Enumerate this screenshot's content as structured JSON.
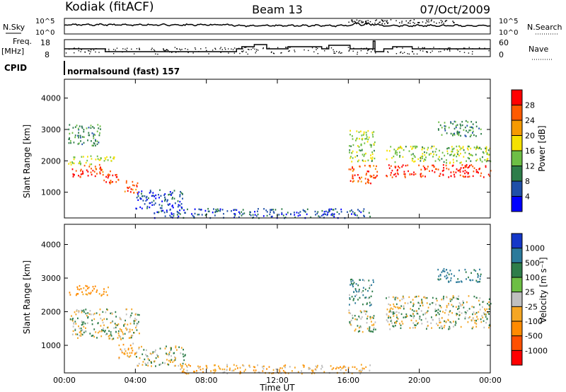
{
  "header": {
    "station": "Kodiak (fitACF)",
    "beam": "Beam 13",
    "date": "07/Oct/2009"
  },
  "noise_panel": {
    "left_label": "N.Sky",
    "right_label": "N.Search",
    "right_ticks": [
      "10^5",
      "10^0"
    ],
    "left_ticks": [
      "10^5",
      "10^0"
    ]
  },
  "freq_panel": {
    "left_label_line1": "Freq.",
    "left_label_line2": "[MHz]",
    "left_ticks": [
      "18",
      "8"
    ],
    "right_label": "Nave",
    "right_ticks": [
      "60",
      "0"
    ]
  },
  "cpid_panel": {
    "label": "CPID",
    "mode_text": "normalsound (fast) 157"
  },
  "power_panel": {
    "ylabel": "Slant Range [km]",
    "yticks": [
      "4000",
      "3000",
      "2000",
      "1000"
    ],
    "colorbar_label": "Power [dB]",
    "colorbar_ticks": [
      "28",
      "24",
      "20",
      "16",
      "12",
      "8",
      "4"
    ],
    "colors": [
      "#0000ff",
      "#1f4fa8",
      "#2e7d4a",
      "#6dbe45",
      "#f5e100",
      "#f59a00",
      "#ff5a00",
      "#ff0000"
    ]
  },
  "velocity_panel": {
    "ylabel": "Slant Range [km]",
    "yticks": [
      "4000",
      "3000",
      "2000",
      "1000"
    ],
    "colorbar_label": "Velocity [m s⁻¹]",
    "colorbar_ticks": [
      "1000",
      "500",
      "100",
      "25",
      "-25",
      "-100",
      "-500",
      "-1000"
    ],
    "colors": [
      "#1437c8",
      "#2b7a9b",
      "#2e7d4a",
      "#6dbe45",
      "#bfbfbf",
      "#f5a623",
      "#ff8a00",
      "#ff5000",
      "#ff0000"
    ],
    "ground_scatter_color": "#bfbfbf"
  },
  "xaxis": {
    "label": "Time UT",
    "ticks": [
      "00:00",
      "04:00",
      "08:00",
      "12:00",
      "16:00",
      "20:00",
      "00:00"
    ]
  },
  "chart_data": {
    "type": "heatmap",
    "title": "Kodiak (fitACF) Beam 13 07/Oct/2009",
    "xlabel": "Time UT",
    "ylabel": "Slant Range [km]",
    "xlim": [
      0,
      24
    ],
    "ylim": [
      180,
      4600
    ],
    "panels": [
      {
        "name": "Power",
        "units": "dB",
        "color_range": [
          0,
          30
        ],
        "regions": [
          {
            "t": [
              0.3,
              1.0
            ],
            "r": [
              1450,
              1800
            ],
            "value": 27
          },
          {
            "t": [
              1.0,
              2.2
            ],
            "r": [
              1500,
              1900
            ],
            "value": 26
          },
          {
            "t": [
              2.2,
              3.2
            ],
            "r": [
              1300,
              1700
            ],
            "value": 25
          },
          {
            "t": [
              3.2,
              4.1
            ],
            "r": [
              1000,
              1400
            ],
            "value": 24
          },
          {
            "t": [
              0.2,
              2.8
            ],
            "r": [
              1900,
              2200
            ],
            "value": 15
          },
          {
            "t": [
              0.2,
              2.0
            ],
            "r": [
              2500,
              3200
            ],
            "value": 10
          },
          {
            "t": [
              4.0,
              6.8
            ],
            "r": [
              500,
              1100
            ],
            "value": 5
          },
          {
            "t": [
              5.0,
              17.2
            ],
            "r": [
              200,
              500
            ],
            "value": 6
          },
          {
            "t": [
              16.0,
              17.6
            ],
            "r": [
              1300,
              1900
            ],
            "value": 25
          },
          {
            "t": [
              16.0,
              17.5
            ],
            "r": [
              2000,
              3000
            ],
            "value": 14
          },
          {
            "t": [
              18.1,
              24.0
            ],
            "r": [
              1500,
              1900
            ],
            "value": 27
          },
          {
            "t": [
              18.1,
              24.0
            ],
            "r": [
              1950,
              2500
            ],
            "value": 14
          },
          {
            "t": [
              21.0,
              23.5
            ],
            "r": [
              2800,
              3300
            ],
            "value": 10
          }
        ]
      },
      {
        "name": "Velocity",
        "units": "m/s",
        "color_range": [
          -1000,
          1000
        ],
        "regions": [
          {
            "t": [
              0.3,
              4.2
            ],
            "r": [
              1200,
              2100
            ],
            "value": 0
          },
          {
            "t": [
              0.2,
              2.5
            ],
            "r": [
              2500,
              2800
            ],
            "value": -150
          },
          {
            "t": [
              3.0,
              4.0
            ],
            "r": [
              600,
              1100
            ],
            "value": -80
          },
          {
            "t": [
              4.0,
              6.8
            ],
            "r": [
              400,
              1000
            ],
            "value": 0
          },
          {
            "t": [
              6.5,
              17.2
            ],
            "r": [
              180,
              450
            ],
            "value": -60
          },
          {
            "t": [
              16.0,
              17.5
            ],
            "r": [
              1400,
              2100
            ],
            "value": 0
          },
          {
            "t": [
              16.0,
              17.4
            ],
            "r": [
              2200,
              3000
            ],
            "value": 80
          },
          {
            "t": [
              18.1,
              24.0
            ],
            "r": [
              1500,
              2500
            ],
            "value": 0
          },
          {
            "t": [
              21.0,
              23.5
            ],
            "r": [
              2900,
              3300
            ],
            "value": 150
          }
        ]
      }
    ],
    "noise_search_level": 50000,
    "freq_mhz": 11,
    "nave": 15,
    "cpid": 157,
    "grid": false
  }
}
